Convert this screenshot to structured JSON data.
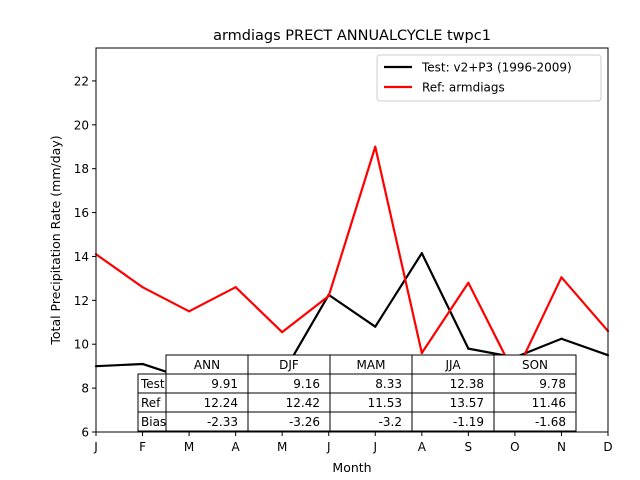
{
  "chart_data": {
    "type": "line",
    "title": "armdiags PRECT ANNUALCYCLE twpc1",
    "xlabel": "Month",
    "ylabel": "Total Precipitation Rate (mm/day)",
    "categories": [
      "J",
      "F",
      "M",
      "A",
      "M",
      "J",
      "J",
      "A",
      "S",
      "O",
      "N",
      "D"
    ],
    "ylim": [
      6,
      23.5
    ],
    "yticks": [
      6,
      8,
      10,
      12,
      14,
      16,
      18,
      20,
      22
    ],
    "grid": false,
    "legend_position": "top-right",
    "series": [
      {
        "name": "Test: v2+P3 (1996-2009)",
        "color": "#000000",
        "values": [
          9.0,
          9.1,
          8.4,
          8.05,
          8.6,
          12.25,
          10.8,
          14.15,
          9.8,
          9.4,
          10.25,
          9.5
        ]
      },
      {
        "name": "Ref: armdiags",
        "color": "#ff0000",
        "values": [
          14.1,
          12.6,
          11.5,
          12.6,
          10.55,
          12.2,
          19.0,
          9.6,
          12.8,
          8.6,
          13.05,
          10.6
        ]
      }
    ],
    "table": {
      "columns": [
        "ANN",
        "DJF",
        "MAM",
        "JJA",
        "SON"
      ],
      "rows": [
        {
          "label": "Test",
          "values": [
            "9.91",
            "9.16",
            "8.33",
            "12.38",
            "9.78"
          ]
        },
        {
          "label": "Ref",
          "values": [
            "12.24",
            "12.42",
            "11.53",
            "13.57",
            "11.46"
          ]
        },
        {
          "label": "Bias",
          "values": [
            "-2.33",
            "-3.26",
            "-3.2",
            "-1.19",
            "-1.68"
          ]
        }
      ]
    }
  }
}
